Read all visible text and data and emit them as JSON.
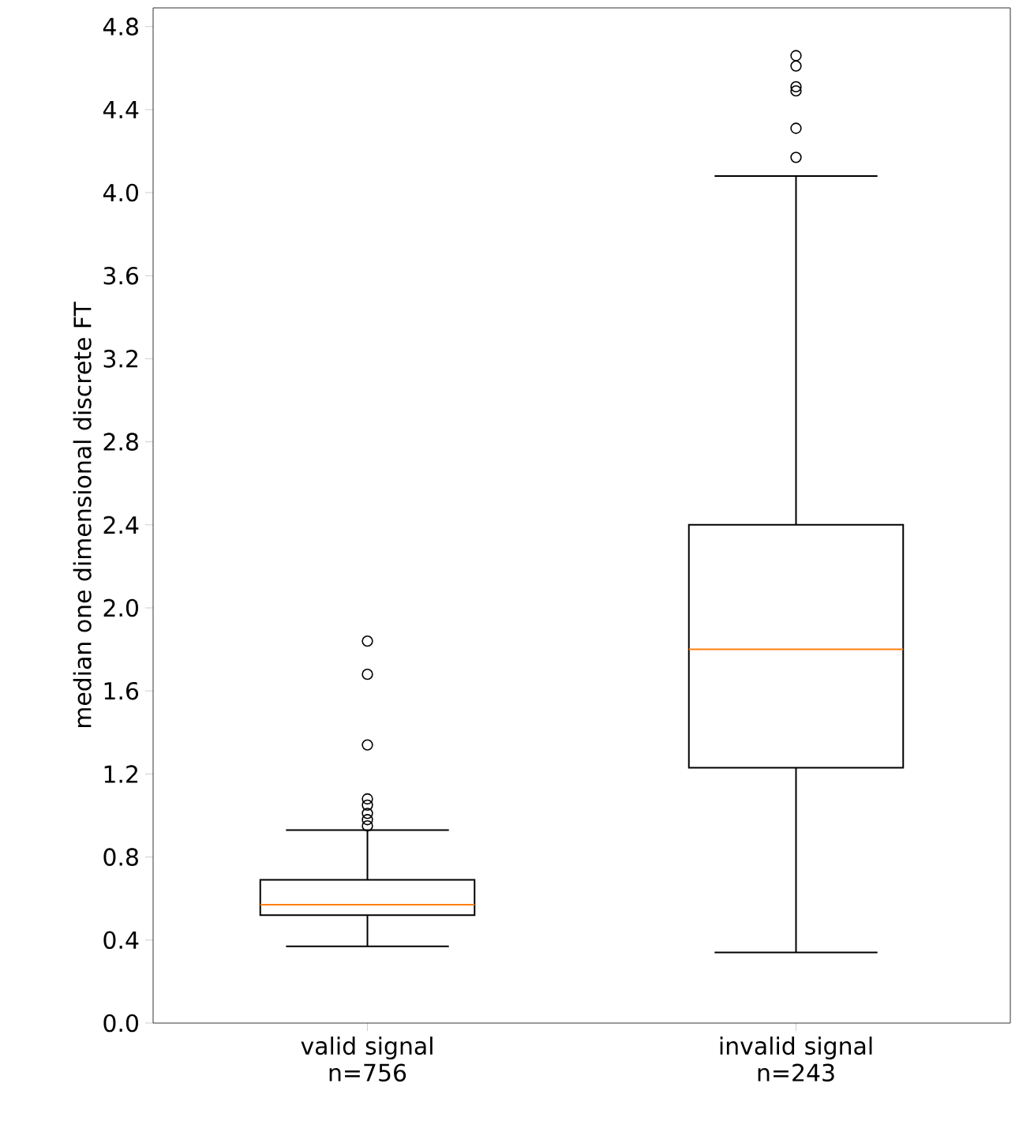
{
  "chart_data": {
    "type": "box",
    "ylabel": "median one dimensional discrete FT",
    "categories": [
      "valid signal n=756",
      "invalid signal n=243"
    ],
    "series": [
      {
        "color": "#000000",
        "boxes": [
          {
            "low": 0.37,
            "q1": 0.52,
            "median": 0.57,
            "q3": 0.69,
            "high": 0.93,
            "outliers": [
              0.95,
              0.98,
              1.01,
              1.05,
              1.08,
              1.34,
              1.68,
              1.84
            ]
          },
          {
            "low": 0.34,
            "q1": 1.23,
            "median": 1.8,
            "q3": 2.4,
            "high": 4.08,
            "outliers": [
              4.17,
              4.31,
              4.49,
              4.51,
              4.61,
              4.66
            ]
          }
        ]
      }
    ],
    "ylim": [
      0,
      4.89
    ],
    "yticks": [
      {
        "value": 0,
        "label": "0.0"
      },
      {
        "value": 0.4,
        "label": "0.4"
      },
      {
        "value": 0.8,
        "label": "0.8"
      },
      {
        "value": 1.2,
        "label": "1.2"
      },
      {
        "value": 1.6,
        "label": "1.6"
      },
      {
        "value": 2.0,
        "label": "2.0"
      },
      {
        "value": 2.4,
        "label": "2.4"
      },
      {
        "value": 2.8,
        "label": "2.8"
      },
      {
        "value": 3.2,
        "label": "3.2"
      },
      {
        "value": 3.6,
        "label": "3.6"
      },
      {
        "value": 4.0,
        "label": "4.0"
      },
      {
        "value": 4.4,
        "label": "4.4"
      },
      {
        "value": 4.8,
        "label": "4.8"
      }
    ],
    "marker": "circle",
    "grid": false
  }
}
